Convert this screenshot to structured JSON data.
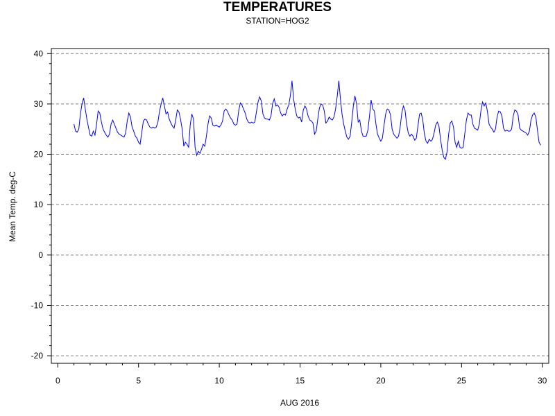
{
  "chart_data": {
    "type": "line",
    "title": "TEMPERATURES",
    "subtitle": "STATION=HOG2",
    "xlabel": "AUG 2016",
    "ylabel": "Mean Temp. deg-C",
    "xlim": [
      -0.4,
      30.4
    ],
    "ylim": [
      -21.5,
      41
    ],
    "x_ticks": [
      0,
      5,
      10,
      15,
      20,
      25,
      30
    ],
    "y_ticks": [
      -20,
      -10,
      0,
      10,
      20,
      30,
      40
    ],
    "grid": "horizontal-dashed",
    "colors": {
      "line": "#0000ff",
      "grid": "#808080",
      "axis": "#000000"
    },
    "series": [
      {
        "points": [
          [
            1.0,
            26.0
          ],
          [
            1.1,
            24.6
          ],
          [
            1.2,
            24.4
          ],
          [
            1.3,
            25.0
          ],
          [
            1.4,
            28.0
          ],
          [
            1.5,
            30.0
          ],
          [
            1.6,
            31.2
          ],
          [
            1.7,
            29.0
          ],
          [
            1.8,
            27.0
          ],
          [
            1.9,
            25.4
          ],
          [
            2.0,
            23.8
          ],
          [
            2.1,
            23.6
          ],
          [
            2.2,
            24.6
          ],
          [
            2.3,
            23.8
          ],
          [
            2.4,
            26.0
          ],
          [
            2.5,
            28.6
          ],
          [
            2.6,
            28.2
          ],
          [
            2.7,
            26.4
          ],
          [
            2.8,
            25.0
          ],
          [
            2.9,
            24.4
          ],
          [
            3.0,
            23.8
          ],
          [
            3.1,
            23.4
          ],
          [
            3.2,
            24.0
          ],
          [
            3.3,
            26.0
          ],
          [
            3.4,
            26.8
          ],
          [
            3.5,
            26.0
          ],
          [
            3.6,
            25.2
          ],
          [
            3.7,
            24.4
          ],
          [
            3.8,
            24.0
          ],
          [
            3.9,
            23.8
          ],
          [
            4.0,
            23.6
          ],
          [
            4.1,
            23.4
          ],
          [
            4.2,
            24.2
          ],
          [
            4.3,
            26.6
          ],
          [
            4.4,
            28.2
          ],
          [
            4.5,
            27.4
          ],
          [
            4.6,
            25.4
          ],
          [
            4.7,
            24.6
          ],
          [
            4.8,
            23.6
          ],
          [
            4.9,
            23.2
          ],
          [
            5.0,
            22.4
          ],
          [
            5.1,
            22.0
          ],
          [
            5.2,
            24.4
          ],
          [
            5.3,
            26.6
          ],
          [
            5.4,
            27.0
          ],
          [
            5.5,
            26.8
          ],
          [
            5.6,
            26.0
          ],
          [
            5.7,
            25.4
          ],
          [
            5.8,
            25.2
          ],
          [
            5.9,
            25.4
          ],
          [
            6.0,
            25.2
          ],
          [
            6.1,
            25.4
          ],
          [
            6.2,
            26.4
          ],
          [
            6.3,
            28.6
          ],
          [
            6.4,
            30.0
          ],
          [
            6.5,
            31.2
          ],
          [
            6.6,
            29.6
          ],
          [
            6.7,
            28.0
          ],
          [
            6.8,
            28.4
          ],
          [
            6.9,
            27.0
          ],
          [
            7.0,
            26.2
          ],
          [
            7.1,
            25.6
          ],
          [
            7.2,
            25.2
          ],
          [
            7.3,
            26.8
          ],
          [
            7.4,
            28.8
          ],
          [
            7.5,
            28.4
          ],
          [
            7.6,
            27.0
          ],
          [
            7.7,
            25.0
          ],
          [
            7.8,
            21.6
          ],
          [
            7.9,
            22.4
          ],
          [
            8.0,
            22.0
          ],
          [
            8.1,
            21.4
          ],
          [
            8.2,
            25.8
          ],
          [
            8.3,
            28.0
          ],
          [
            8.4,
            27.0
          ],
          [
            8.5,
            21.4
          ],
          [
            8.6,
            19.8
          ],
          [
            8.7,
            20.6
          ],
          [
            8.8,
            20.2
          ],
          [
            8.9,
            21.0
          ],
          [
            9.0,
            22.0
          ],
          [
            9.1,
            21.6
          ],
          [
            9.2,
            23.6
          ],
          [
            9.3,
            26.0
          ],
          [
            9.4,
            27.6
          ],
          [
            9.5,
            27.2
          ],
          [
            9.6,
            25.8
          ],
          [
            9.7,
            25.6
          ],
          [
            9.8,
            25.8
          ],
          [
            9.9,
            25.6
          ],
          [
            10.0,
            25.4
          ],
          [
            10.1,
            25.8
          ],
          [
            10.2,
            26.6
          ],
          [
            10.3,
            28.6
          ],
          [
            10.4,
            29.0
          ],
          [
            10.5,
            28.6
          ],
          [
            10.6,
            27.8
          ],
          [
            10.7,
            27.2
          ],
          [
            10.8,
            26.8
          ],
          [
            10.9,
            26.0
          ],
          [
            11.0,
            25.8
          ],
          [
            11.1,
            26.0
          ],
          [
            11.2,
            28.6
          ],
          [
            11.3,
            30.2
          ],
          [
            11.4,
            29.8
          ],
          [
            11.5,
            29.0
          ],
          [
            11.6,
            28.2
          ],
          [
            11.7,
            27.0
          ],
          [
            11.8,
            26.4
          ],
          [
            11.9,
            26.2
          ],
          [
            12.0,
            26.4
          ],
          [
            12.1,
            26.2
          ],
          [
            12.2,
            26.4
          ],
          [
            12.3,
            28.4
          ],
          [
            12.4,
            30.4
          ],
          [
            12.5,
            31.4
          ],
          [
            12.6,
            30.6
          ],
          [
            12.7,
            28.0
          ],
          [
            12.8,
            27.2
          ],
          [
            12.9,
            27.0
          ],
          [
            13.0,
            27.0
          ],
          [
            13.1,
            26.8
          ],
          [
            13.2,
            27.6
          ],
          [
            13.3,
            30.0
          ],
          [
            13.4,
            31.0
          ],
          [
            13.5,
            29.6
          ],
          [
            13.6,
            29.8
          ],
          [
            13.7,
            29.4
          ],
          [
            13.8,
            28.2
          ],
          [
            13.9,
            27.6
          ],
          [
            14.0,
            28.0
          ],
          [
            14.1,
            27.8
          ],
          [
            14.2,
            29.0
          ],
          [
            14.3,
            29.8
          ],
          [
            14.4,
            31.6
          ],
          [
            14.5,
            34.6
          ],
          [
            14.6,
            31.0
          ],
          [
            14.7,
            29.0
          ],
          [
            14.8,
            27.6
          ],
          [
            14.9,
            27.2
          ],
          [
            15.0,
            27.4
          ],
          [
            15.1,
            26.4
          ],
          [
            15.2,
            28.8
          ],
          [
            15.3,
            29.6
          ],
          [
            15.4,
            29.0
          ],
          [
            15.5,
            27.6
          ],
          [
            15.6,
            26.8
          ],
          [
            15.7,
            26.6
          ],
          [
            15.8,
            26.2
          ],
          [
            15.9,
            24.0
          ],
          [
            16.0,
            24.6
          ],
          [
            16.1,
            27.0
          ],
          [
            16.2,
            29.2
          ],
          [
            16.3,
            30.0
          ],
          [
            16.4,
            29.8
          ],
          [
            16.5,
            28.6
          ],
          [
            16.6,
            26.2
          ],
          [
            16.7,
            26.6
          ],
          [
            16.8,
            27.4
          ],
          [
            16.9,
            27.0
          ],
          [
            17.0,
            26.8
          ],
          [
            17.1,
            27.4
          ],
          [
            17.2,
            29.0
          ],
          [
            17.3,
            31.4
          ],
          [
            17.4,
            34.6
          ],
          [
            17.5,
            31.0
          ],
          [
            17.6,
            28.0
          ],
          [
            17.7,
            26.0
          ],
          [
            17.8,
            24.6
          ],
          [
            17.9,
            23.4
          ],
          [
            18.0,
            23.0
          ],
          [
            18.1,
            23.6
          ],
          [
            18.2,
            26.4
          ],
          [
            18.3,
            29.6
          ],
          [
            18.4,
            31.6
          ],
          [
            18.5,
            30.0
          ],
          [
            18.6,
            26.4
          ],
          [
            18.7,
            26.8
          ],
          [
            18.8,
            24.6
          ],
          [
            18.9,
            23.6
          ],
          [
            19.0,
            23.6
          ],
          [
            19.1,
            23.6
          ],
          [
            19.2,
            24.8
          ],
          [
            19.3,
            27.6
          ],
          [
            19.4,
            30.8
          ],
          [
            19.5,
            29.0
          ],
          [
            19.6,
            28.6
          ],
          [
            19.7,
            26.0
          ],
          [
            19.8,
            24.0
          ],
          [
            19.9,
            23.2
          ],
          [
            20.0,
            22.6
          ],
          [
            20.1,
            23.2
          ],
          [
            20.2,
            25.8
          ],
          [
            20.3,
            28.0
          ],
          [
            20.4,
            29.0
          ],
          [
            20.5,
            28.8
          ],
          [
            20.6,
            27.8
          ],
          [
            20.7,
            25.0
          ],
          [
            20.8,
            24.0
          ],
          [
            20.9,
            23.6
          ],
          [
            21.0,
            23.2
          ],
          [
            21.1,
            23.6
          ],
          [
            21.2,
            25.4
          ],
          [
            21.3,
            28.2
          ],
          [
            21.4,
            29.6
          ],
          [
            21.5,
            28.8
          ],
          [
            21.6,
            26.0
          ],
          [
            21.7,
            24.2
          ],
          [
            21.8,
            23.6
          ],
          [
            21.9,
            24.0
          ],
          [
            22.0,
            23.6
          ],
          [
            22.1,
            22.8
          ],
          [
            22.2,
            23.2
          ],
          [
            22.3,
            25.6
          ],
          [
            22.4,
            28.0
          ],
          [
            22.5,
            28.2
          ],
          [
            22.6,
            26.8
          ],
          [
            22.7,
            24.0
          ],
          [
            22.8,
            22.6
          ],
          [
            22.9,
            22.2
          ],
          [
            23.0,
            23.0
          ],
          [
            23.1,
            22.6
          ],
          [
            23.2,
            23.0
          ],
          [
            23.3,
            24.2
          ],
          [
            23.4,
            25.8
          ],
          [
            23.5,
            26.4
          ],
          [
            23.6,
            25.6
          ],
          [
            23.7,
            23.0
          ],
          [
            23.8,
            20.8
          ],
          [
            23.9,
            19.4
          ],
          [
            24.0,
            19.0
          ],
          [
            24.1,
            20.4
          ],
          [
            24.2,
            24.0
          ],
          [
            24.3,
            26.2
          ],
          [
            24.4,
            26.6
          ],
          [
            24.5,
            25.4
          ],
          [
            24.6,
            22.4
          ],
          [
            24.7,
            21.4
          ],
          [
            24.8,
            22.6
          ],
          [
            24.9,
            21.4
          ],
          [
            25.0,
            21.2
          ],
          [
            25.1,
            21.4
          ],
          [
            25.2,
            24.0
          ],
          [
            25.3,
            26.8
          ],
          [
            25.4,
            28.2
          ],
          [
            25.5,
            27.8
          ],
          [
            25.6,
            27.8
          ],
          [
            25.7,
            26.0
          ],
          [
            25.8,
            25.2
          ],
          [
            25.9,
            25.0
          ],
          [
            26.0,
            24.8
          ],
          [
            26.1,
            26.0
          ],
          [
            26.2,
            28.6
          ],
          [
            26.3,
            30.4
          ],
          [
            26.4,
            29.6
          ],
          [
            26.5,
            30.2
          ],
          [
            26.6,
            28.6
          ],
          [
            26.7,
            26.0
          ],
          [
            26.8,
            25.4
          ],
          [
            26.9,
            25.0
          ],
          [
            27.0,
            24.4
          ],
          [
            27.1,
            25.0
          ],
          [
            27.2,
            27.4
          ],
          [
            27.3,
            28.6
          ],
          [
            27.4,
            28.4
          ],
          [
            27.5,
            27.6
          ],
          [
            27.6,
            25.2
          ],
          [
            27.7,
            24.6
          ],
          [
            27.8,
            24.8
          ],
          [
            27.9,
            24.6
          ],
          [
            28.0,
            24.6
          ],
          [
            28.1,
            25.0
          ],
          [
            28.2,
            27.6
          ],
          [
            28.3,
            28.8
          ],
          [
            28.4,
            28.6
          ],
          [
            28.5,
            27.8
          ],
          [
            28.6,
            25.2
          ],
          [
            28.7,
            24.8
          ],
          [
            28.8,
            24.6
          ],
          [
            28.9,
            24.4
          ],
          [
            29.0,
            24.2
          ],
          [
            29.1,
            23.8
          ],
          [
            29.2,
            24.6
          ],
          [
            29.3,
            26.8
          ],
          [
            29.4,
            27.8
          ],
          [
            29.5,
            28.2
          ],
          [
            29.6,
            27.4
          ],
          [
            29.7,
            24.8
          ],
          [
            29.8,
            22.4
          ],
          [
            29.9,
            21.8
          ]
        ]
      }
    ]
  }
}
